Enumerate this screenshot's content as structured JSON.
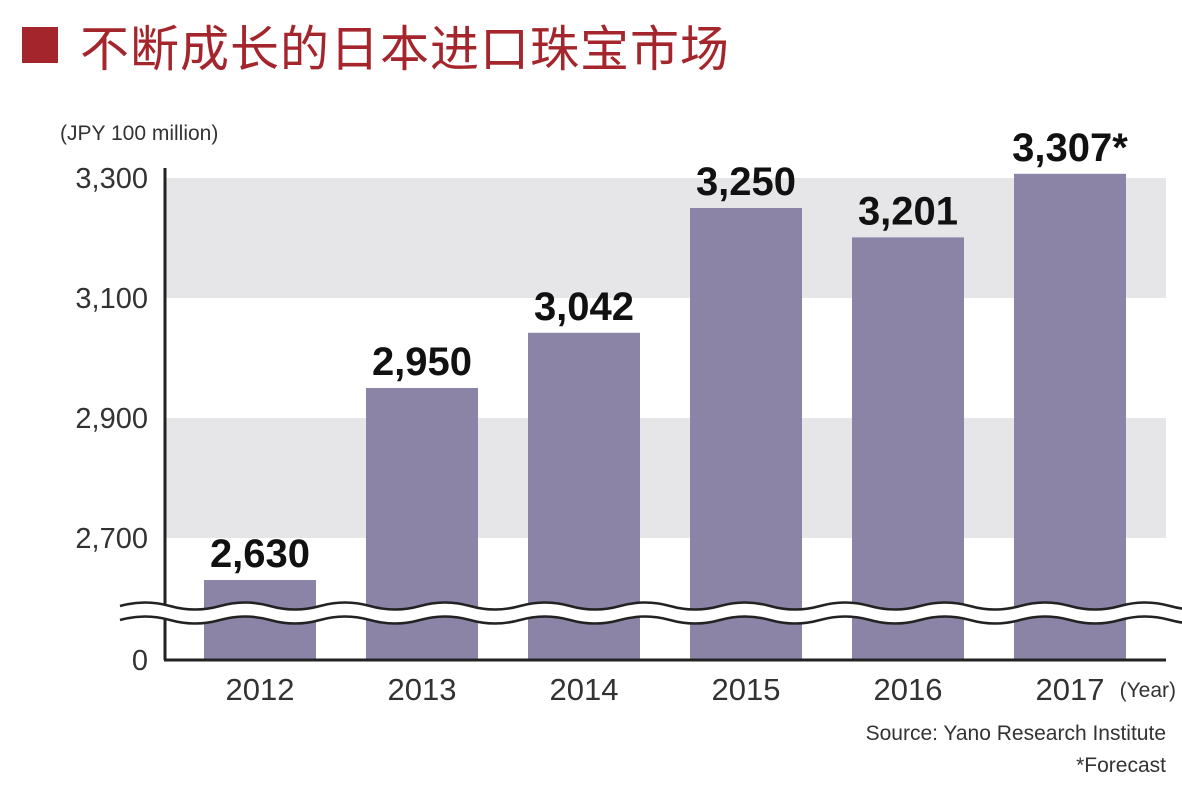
{
  "title": "不断成长的日本进口珠宝市场",
  "colors": {
    "title": "#a4262c",
    "bar": "#8c84a6",
    "band": "#e6e6e8",
    "axis": "#222222"
  },
  "chart_data": {
    "type": "bar",
    "categories": [
      "2012",
      "2013",
      "2014",
      "2015",
      "2016",
      "2017"
    ],
    "values": [
      2630,
      2950,
      3042,
      3250,
      3201,
      3307
    ],
    "value_labels": [
      "2,630",
      "2,950",
      "3,042",
      "3,250",
      "3,201",
      "3,307*"
    ],
    "y_ticks": [
      "0",
      "2,700",
      "2,900",
      "3,100",
      "3,300"
    ],
    "y_axis_break": true,
    "ylim": [
      2500,
      3300
    ],
    "ylabel": "(JPY 100 million)",
    "xlabel": "(Year)",
    "grid": "alternating horizontal bands"
  },
  "source": "Source: Yano Research Institute",
  "footnote": "*Forecast"
}
